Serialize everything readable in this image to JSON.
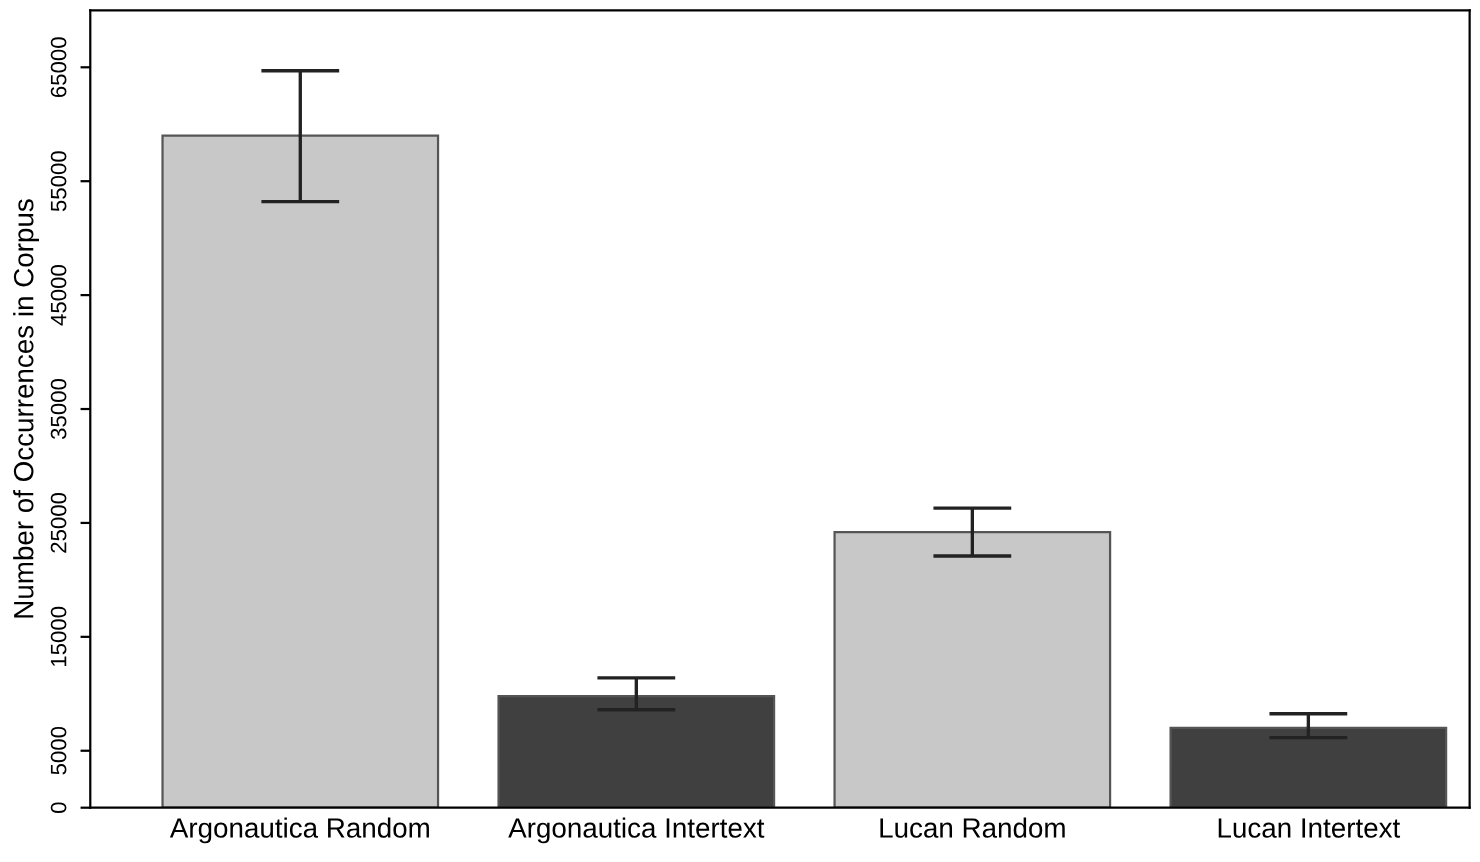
{
  "chart_data": {
    "type": "bar",
    "ylabel": "Number of Occurrences in Corpus",
    "categories": [
      "Argonautica Random",
      "Argonautica Intertext",
      "Lucan Random",
      "Lucan Intertext"
    ],
    "values": [
      59000,
      9800,
      24200,
      7000
    ],
    "colors": [
      "#c8c8c8",
      "#404040",
      "#c8c8c8",
      "#404040"
    ],
    "errors": [
      [
        53200,
        64700
      ],
      [
        8600,
        11400
      ],
      [
        22100,
        26300
      ],
      [
        6150,
        8250
      ]
    ],
    "ylim": [
      0,
      70000
    ],
    "yticks": [
      0,
      5000,
      15000,
      25000,
      35000,
      45000,
      55000,
      65000
    ],
    "grid": false,
    "legend": false
  }
}
